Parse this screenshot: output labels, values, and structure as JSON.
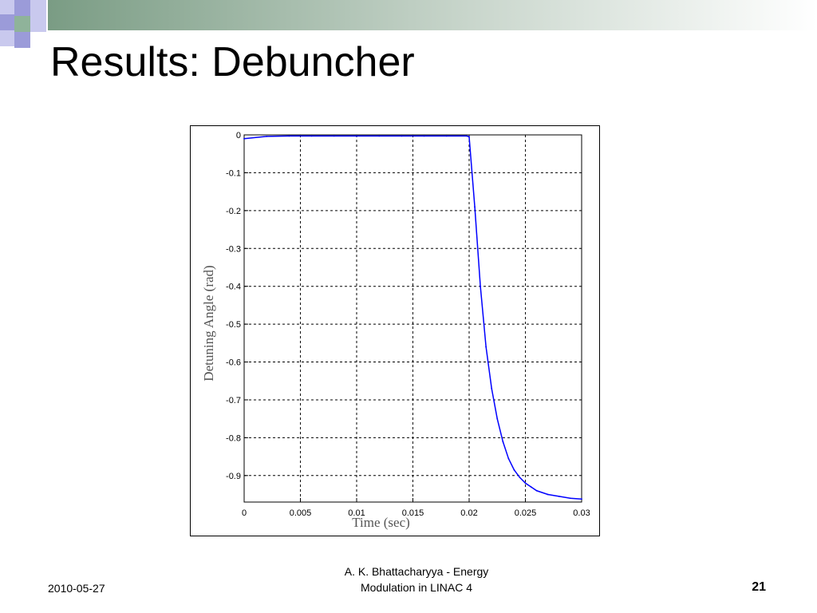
{
  "slide": {
    "title": "Results: Debuncher",
    "footer_date": "2010-05-27",
    "footer_author_line1": "A. K. Bhattacharyya - Energy",
    "footer_author_line2": "Modulation in LINAC 4",
    "page_number": "21"
  },
  "colors": {
    "banner_dark": "#7a9c84",
    "banner_light": "#ffffff",
    "deco_purple": "#9b9bd9",
    "deco_lavender": "#c9c9ee",
    "deco_green": "#8fb39a",
    "series": "#0000ff"
  },
  "chart_data": {
    "type": "line",
    "title": "",
    "xlabel": "Time (sec)",
    "ylabel": "Detuning Angle (rad)",
    "xlim": [
      0,
      0.03
    ],
    "ylim": [
      -0.97,
      0
    ],
    "grid": true,
    "xticks": [
      0,
      0.005,
      0.01,
      0.015,
      0.02,
      0.025,
      0.03
    ],
    "xtick_labels": [
      "0",
      "0.005",
      "0.01",
      "0.015",
      "0.02",
      "0.025",
      "0.03"
    ],
    "yticks": [
      0,
      -0.1,
      -0.2,
      -0.3,
      -0.4,
      -0.5,
      -0.6,
      -0.7,
      -0.8,
      -0.9
    ],
    "ytick_labels": [
      "0",
      "-0.1",
      "-0.2",
      "-0.3",
      "-0.4",
      "-0.5",
      "-0.6",
      "-0.7",
      "-0.8",
      "-0.9"
    ],
    "series": [
      {
        "x": [
          0,
          0.002,
          0.004,
          0.006,
          0.008,
          0.01,
          0.012,
          0.014,
          0.016,
          0.018,
          0.0198,
          0.02,
          0.0205,
          0.021,
          0.0215,
          0.022,
          0.0225,
          0.023,
          0.0235,
          0.024,
          0.0245,
          0.025,
          0.0255,
          0.026,
          0.027,
          0.028,
          0.029,
          0.03
        ],
        "y": [
          -0.01,
          -0.004,
          -0.003,
          -0.003,
          -0.003,
          -0.003,
          -0.003,
          -0.003,
          -0.003,
          -0.003,
          -0.003,
          -0.005,
          -0.19,
          -0.4,
          -0.56,
          -0.67,
          -0.75,
          -0.81,
          -0.855,
          -0.885,
          -0.905,
          -0.92,
          -0.93,
          -0.94,
          -0.95,
          -0.955,
          -0.96,
          -0.962
        ]
      }
    ]
  }
}
